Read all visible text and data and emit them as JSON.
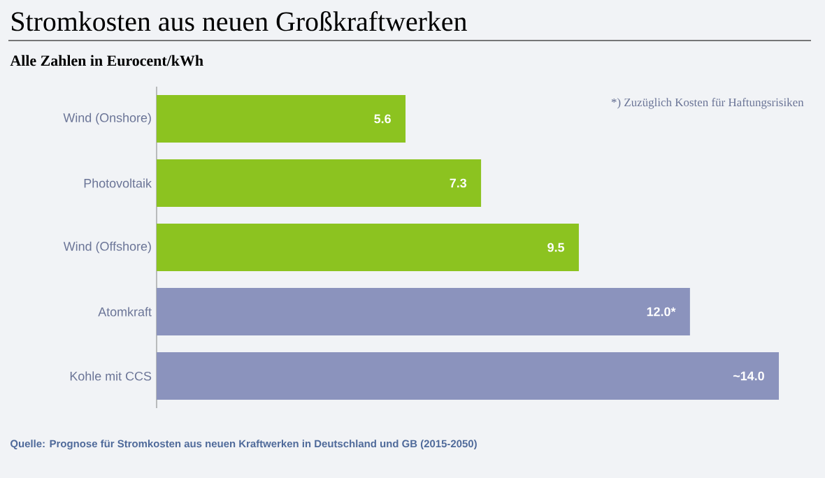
{
  "chart_data": {
    "type": "bar",
    "orientation": "horizontal",
    "title": "Stromkosten aus neuen Großkraftwerken",
    "subtitle": "Alle Zahlen in Eurocent/kWh",
    "categories": [
      "Wind (Onshore)",
      "Photovoltaik",
      "Wind (Offshore)",
      "Atomkraft",
      "Kohle mit CCS"
    ],
    "values": [
      5.6,
      7.3,
      9.5,
      12.0,
      14.0
    ],
    "value_labels": [
      "5.6",
      "7.3",
      "9.5",
      "12.0*",
      "~14.0"
    ],
    "colors": [
      "#8cc320",
      "#8cc320",
      "#8cc320",
      "#8b93bd",
      "#8b93bd"
    ],
    "annotations": [
      "*) Zuzüglich Kosten für Haftungsrisiken",
      "Quelle: Prognose für Stromkosten aus neuen Kraftwerken in Deutschland und GB (2015-2050)"
    ]
  }
}
